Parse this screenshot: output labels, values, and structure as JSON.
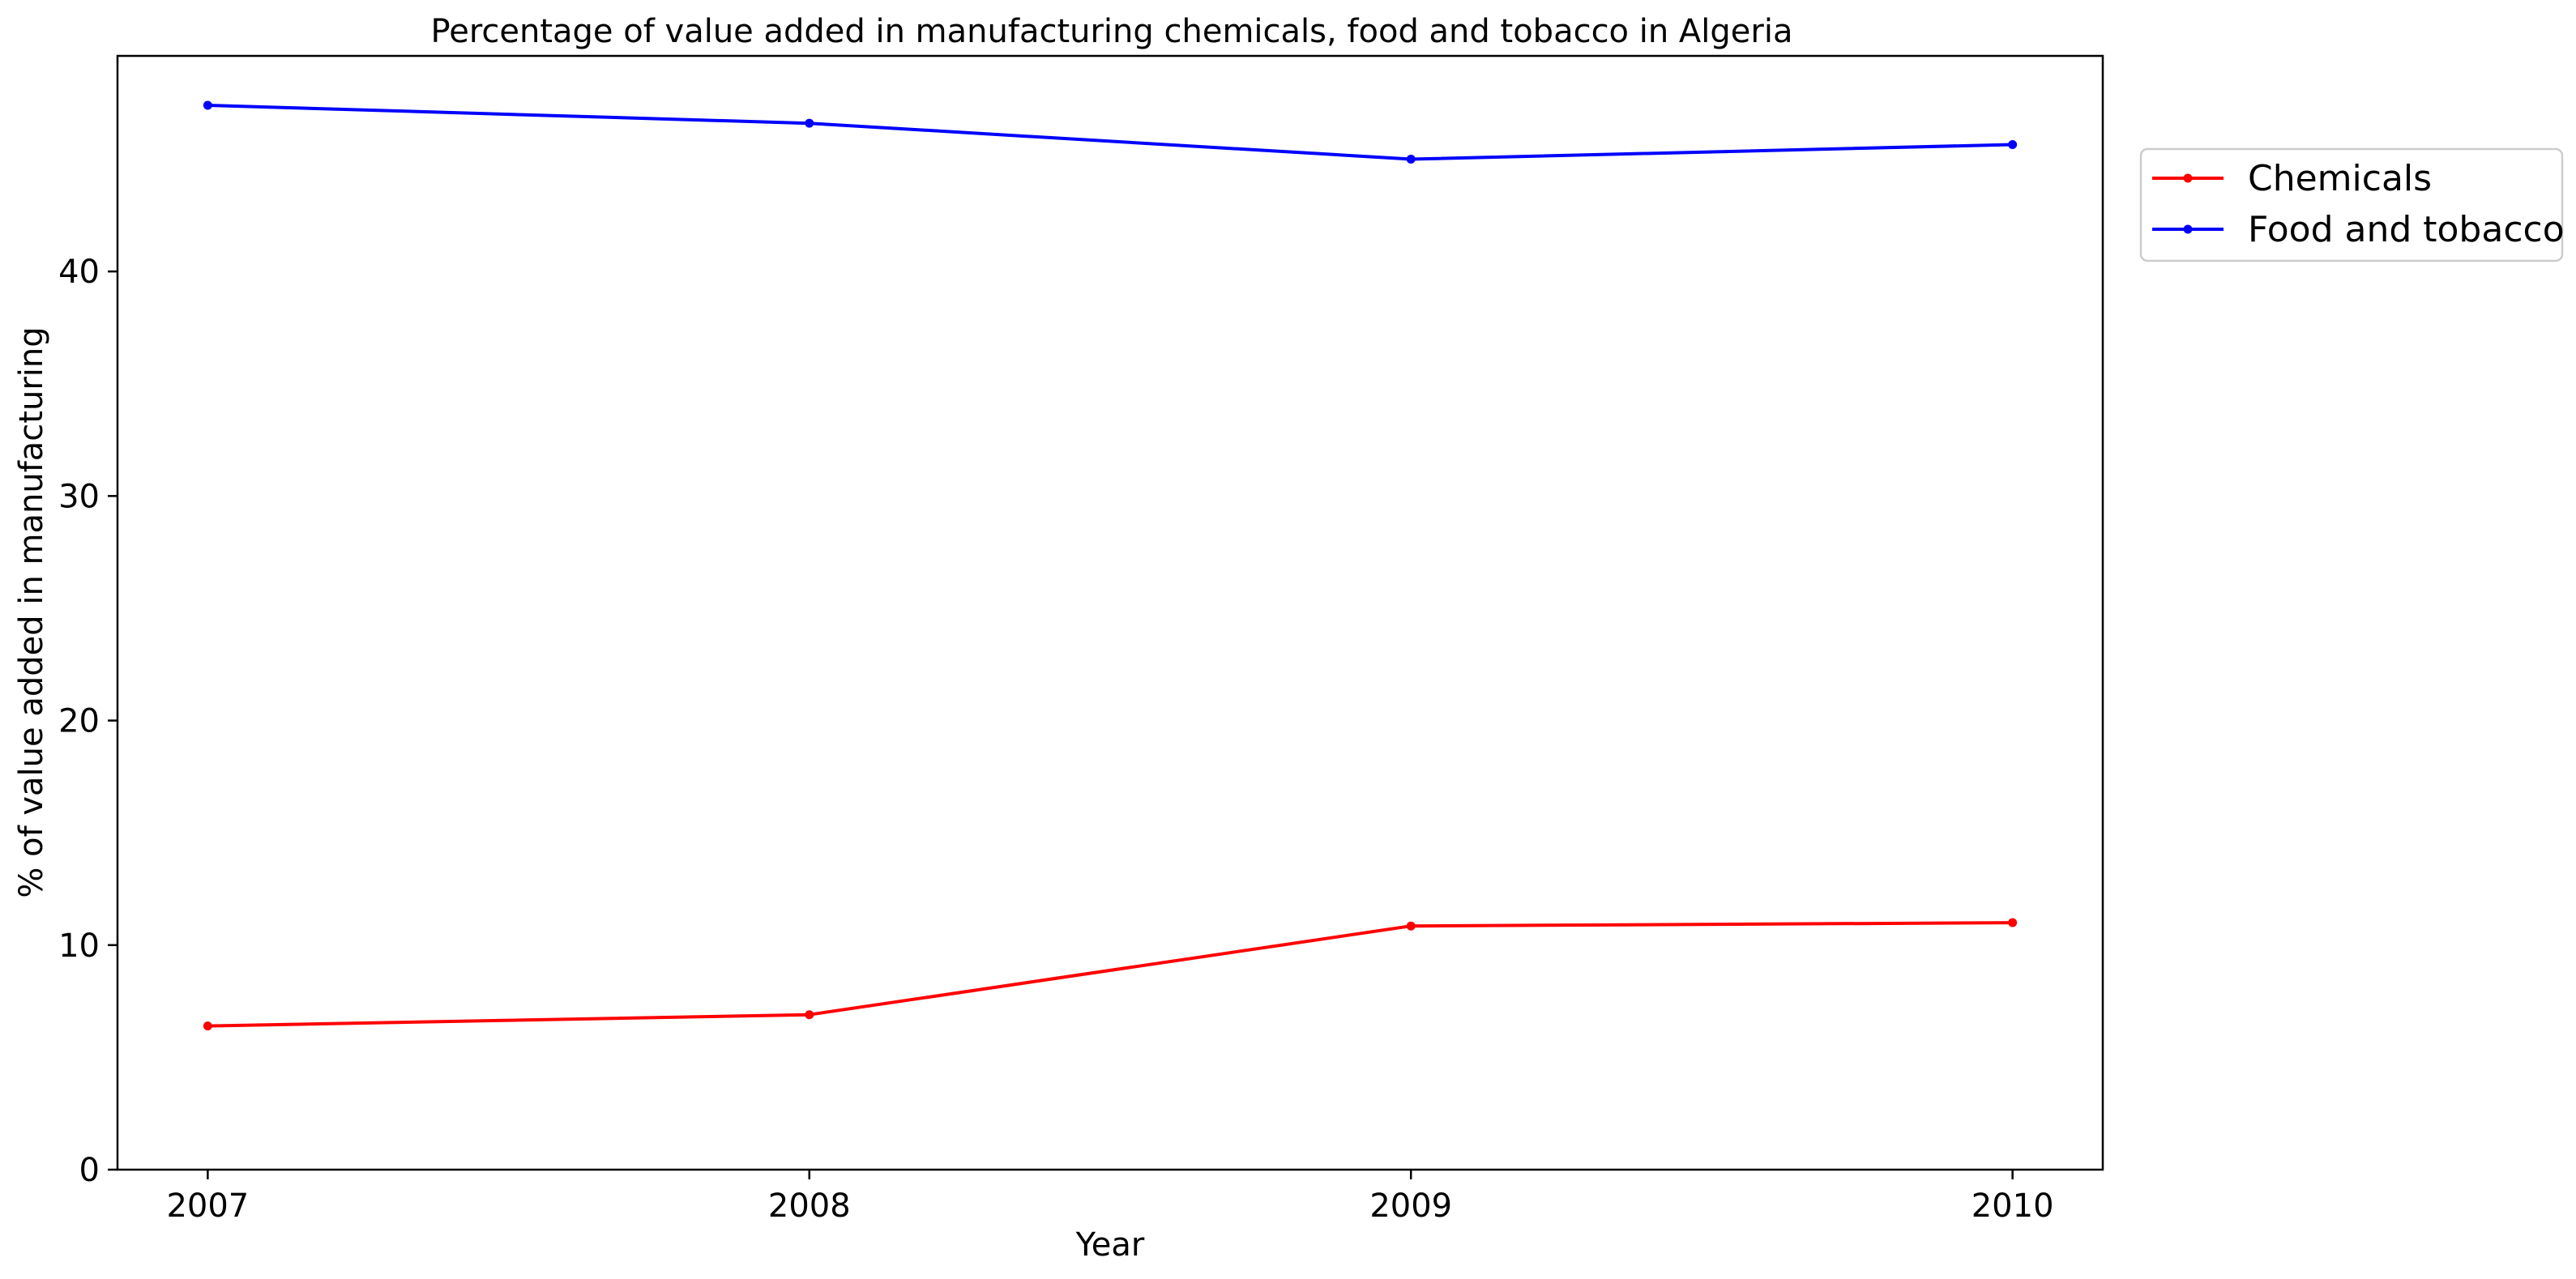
{
  "chart_data": {
    "type": "line",
    "title": "Percentage of value added in manufacturing chemicals, food and tobacco in Algeria",
    "xlabel": "Year",
    "ylabel": "% of value added in manufacturing",
    "x": [
      2007,
      2008,
      2009,
      2010
    ],
    "xlim": [
      2006.85,
      2010.15
    ],
    "ylim": [
      0,
      49.6
    ],
    "yticks": [
      0,
      10,
      20,
      30,
      40
    ],
    "grid": false,
    "legend_position": "upper right, outside plot",
    "series": [
      {
        "name": "Chemicals",
        "color": "#ff0000",
        "values": [
          6.4,
          6.9,
          10.85,
          11.0
        ]
      },
      {
        "name": "Food and tobacco",
        "color": "#0000ff",
        "values": [
          47.4,
          46.6,
          45.0,
          45.65
        ]
      }
    ]
  }
}
